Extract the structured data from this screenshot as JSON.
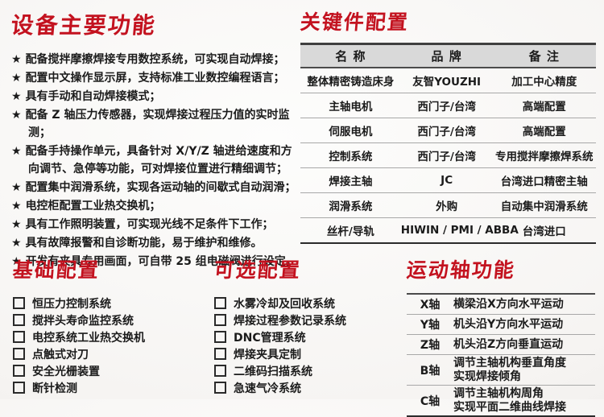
{
  "colors": {
    "accent_red": "#c3121f",
    "table_header_bg": "#d9d9d9"
  },
  "features": {
    "title": "设备主要功能",
    "bullet": "★",
    "items": [
      "配备搅拌摩擦焊接专用数控系统，可实现自动焊接；",
      "配置中文操作显示屏，支持标准工业数控编程语言；",
      "具有手动和自动焊接模式；",
      "配备 Z 轴压力传感器，实现焊接过程压力值的实时监测；",
      "配备手持操作单元，具备针对 X/Y/Z 轴进给速度和方向调节、急停等功能，可对焊接位置进行精细调节；",
      "配置集中润滑系统，实现各运动轴的间歇式自动润滑；",
      "电控柜配置工业热交换机；",
      "具有工作照明装置，可实现光线不足条件下工作；",
      "具有故障报警和自诊断功能，易于维护和维修。",
      "开发有夹具专用画面，可自带 25 组电磁阀进行设定。"
    ]
  },
  "key_components": {
    "title": "关键件配置",
    "headers": [
      "名 称",
      "品 牌",
      "备 注"
    ],
    "rows": [
      {
        "name": "整体精密铸造床身",
        "brand": "友智YOUZHI",
        "note": "加工中心精度"
      },
      {
        "name": "主轴电机",
        "brand": "西门子/台湾",
        "note": "高端配置"
      },
      {
        "name": "伺服电机",
        "brand": "西门子/台湾",
        "note": "高端配置"
      },
      {
        "name": "控制系统",
        "brand": "西门子/台湾",
        "note": "专用搅拌摩擦焊系统"
      },
      {
        "name": "焊接主轴",
        "brand": "JC",
        "note": "台湾进口精密主轴"
      },
      {
        "name": "润滑系统",
        "brand": "外购",
        "note": "自动集中润滑系统"
      },
      {
        "name": "丝杆/导轨",
        "brand": "HIWIN / PMI / ABBA",
        "note": "台湾进口"
      }
    ]
  },
  "basic_config": {
    "title": "基础配置",
    "items": [
      "恒压力控制系统",
      "搅拌头寿命监控系统",
      "电控系统工业热交换机",
      "点触式对刀",
      "安全光栅装置",
      "断针检测"
    ]
  },
  "optional_config": {
    "title": "可选配置",
    "items": [
      "水雾冷却及回收系统",
      "焊接过程参数记录系统",
      "DNC管理系统",
      "焊接夹具定制",
      "二维码扫描系统",
      "急速气冷系统"
    ]
  },
  "axes": {
    "title": "运动轴功能",
    "rows": [
      {
        "axis": "X轴",
        "desc1": "横梁沿X方向水平运动",
        "desc2": ""
      },
      {
        "axis": "Y轴",
        "desc1": "机头沿Y方向水平运动",
        "desc2": ""
      },
      {
        "axis": "Z轴",
        "desc1": "机头沿Z方向垂直运动",
        "desc2": ""
      },
      {
        "axis": "B轴",
        "desc1": "调节主轴机构垂直角度",
        "desc2": "实现焊接倾角"
      },
      {
        "axis": "C轴",
        "desc1": "调节主轴机构周角",
        "desc2": "实现平面二维曲线焊接"
      }
    ]
  }
}
